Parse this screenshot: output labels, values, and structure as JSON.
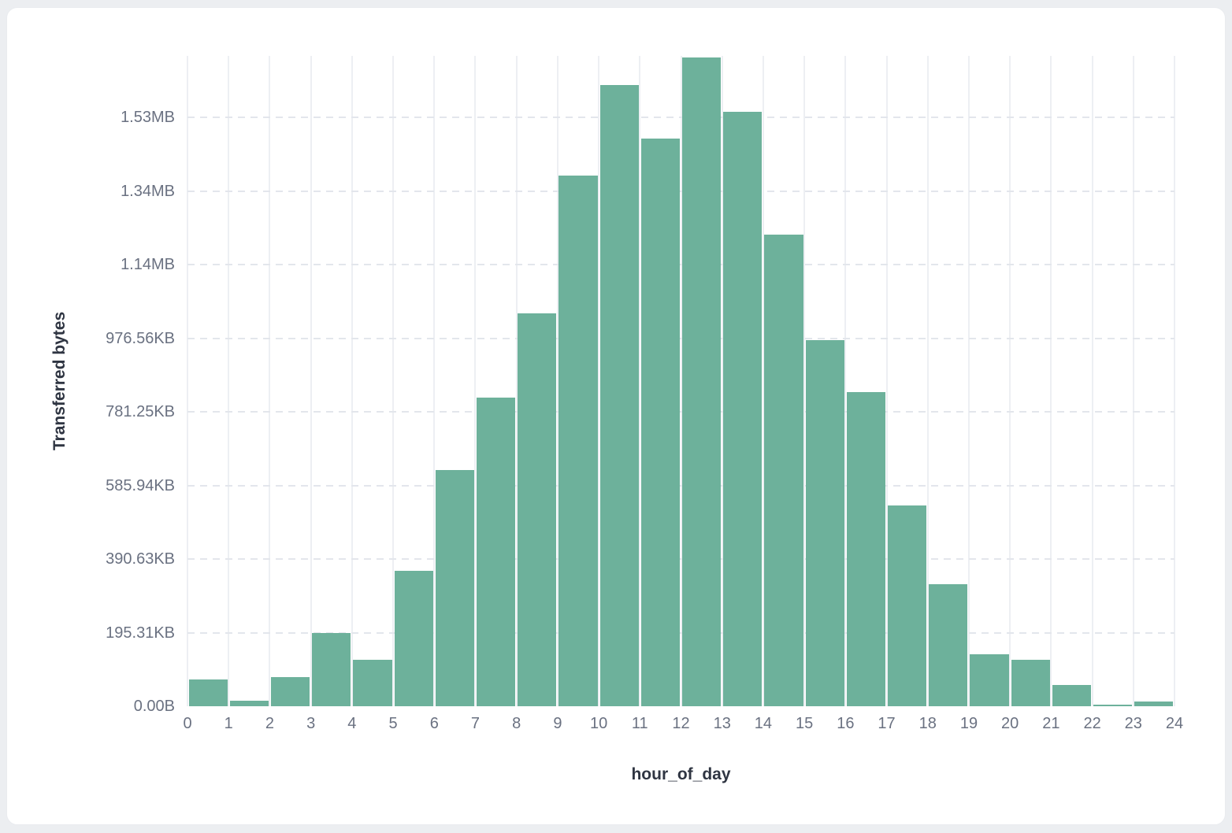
{
  "page": {
    "background_color": "#eceef1",
    "card_background_color": "#ffffff"
  },
  "chart_data": {
    "type": "bar",
    "title": "",
    "xlabel": "hour_of_day",
    "ylabel": "Transferred bytes",
    "bar_color": "#6db19b",
    "grid": {
      "vertical": "solid",
      "horizontal": "dashed",
      "legend": "none"
    },
    "categories": [
      0,
      1,
      2,
      3,
      4,
      5,
      6,
      7,
      8,
      9,
      10,
      11,
      12,
      13,
      14,
      15,
      16,
      17,
      18,
      19,
      20,
      21,
      22,
      23
    ],
    "values_unit": "bytes",
    "values": [
      72000,
      15000,
      79000,
      198000,
      126000,
      369000,
      642000,
      838000,
      1067000,
      1442000,
      1688000,
      1542000,
      1763000,
      1615000,
      1281000,
      995000,
      854000,
      545000,
      332000,
      141000,
      126000,
      58000,
      5000,
      12000
    ],
    "x_tick_labels": [
      "0",
      "1",
      "2",
      "3",
      "4",
      "5",
      "6",
      "7",
      "8",
      "9",
      "10",
      "11",
      "12",
      "13",
      "14",
      "15",
      "16",
      "17",
      "18",
      "19",
      "20",
      "21",
      "22",
      "23",
      "24"
    ],
    "y_ticks": [
      {
        "value": 0,
        "label": "0.00B"
      },
      {
        "value": 200000,
        "label": "195.31KB"
      },
      {
        "value": 400000,
        "label": "390.63KB"
      },
      {
        "value": 600000,
        "label": "585.94KB"
      },
      {
        "value": 800000,
        "label": "781.25KB"
      },
      {
        "value": 1000000,
        "label": "976.56KB"
      },
      {
        "value": 1200000,
        "label": "1.14MB"
      },
      {
        "value": 1400000,
        "label": "1.34MB"
      },
      {
        "value": 1600000,
        "label": "1.53MB"
      }
    ],
    "ylim": [
      0,
      1767000
    ],
    "xlim": [
      0,
      24
    ]
  }
}
